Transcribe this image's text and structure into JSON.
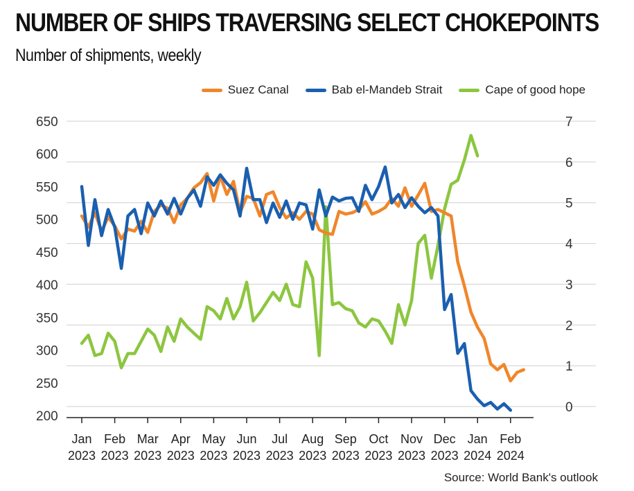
{
  "header": {
    "title": "NUMBER OF SHIPS TRAVERSING SELECT CHOKEPOINTS",
    "subtitle": "Number of shipments, weekly"
  },
  "source": "Source: World Bank's outlook",
  "chart_data": {
    "type": "line",
    "title": "NUMBER OF SHIPS TRAVERSING SELECT CHOKEPOINTS",
    "subtitle": "Number of shipments, weekly",
    "legend_position": "top-right",
    "grid": true,
    "y_left": {
      "ylim": [
        200,
        650
      ],
      "ticks": [
        650,
        600,
        550,
        500,
        450,
        400,
        350,
        300,
        250,
        200
      ]
    },
    "y_right": {
      "ylim": [
        0,
        7
      ],
      "ticks": [
        7,
        6,
        5,
        4,
        3,
        2,
        1,
        0
      ]
    },
    "x_labels": [
      {
        "month": "Jan",
        "year": "2023"
      },
      {
        "month": "Feb",
        "year": "2023"
      },
      {
        "month": "Mar",
        "year": "2023"
      },
      {
        "month": "Apr",
        "year": "2023"
      },
      {
        "month": "May",
        "year": "2023"
      },
      {
        "month": "Jun",
        "year": "2023"
      },
      {
        "month": "Jul",
        "year": "2023"
      },
      {
        "month": "Aug",
        "year": "2023"
      },
      {
        "month": "Sep",
        "year": "2023"
      },
      {
        "month": "Oct",
        "year": "2023"
      },
      {
        "month": "Nov",
        "year": "2023"
      },
      {
        "month": "Dec",
        "year": "2023"
      },
      {
        "month": "Jan",
        "year": "2024"
      },
      {
        "month": "Feb",
        "year": "2024"
      }
    ],
    "x_range": [
      0,
      14
    ],
    "series": [
      {
        "name": "Suez Canal",
        "color": "#f0862a",
        "axis": "left",
        "values": [
          [
            0.0,
            505
          ],
          [
            0.2,
            488
          ],
          [
            0.4,
            510
          ],
          [
            0.6,
            482
          ],
          [
            0.8,
            503
          ],
          [
            1.0,
            490
          ],
          [
            1.2,
            470
          ],
          [
            1.4,
            485
          ],
          [
            1.6,
            482
          ],
          [
            1.8,
            497
          ],
          [
            2.0,
            480
          ],
          [
            2.2,
            512
          ],
          [
            2.4,
            522
          ],
          [
            2.6,
            517
          ],
          [
            2.8,
            495
          ],
          [
            3.0,
            522
          ],
          [
            3.2,
            532
          ],
          [
            3.4,
            548
          ],
          [
            3.6,
            556
          ],
          [
            3.8,
            570
          ],
          [
            4.0,
            528
          ],
          [
            4.2,
            566
          ],
          [
            4.4,
            538
          ],
          [
            4.6,
            558
          ],
          [
            4.8,
            510
          ],
          [
            5.0,
            535
          ],
          [
            5.2,
            532
          ],
          [
            5.4,
            505
          ],
          [
            5.6,
            538
          ],
          [
            5.8,
            542
          ],
          [
            6.0,
            518
          ],
          [
            6.2,
            502
          ],
          [
            6.4,
            510
          ],
          [
            6.6,
            500
          ],
          [
            6.8,
            512
          ],
          [
            7.0,
            508
          ],
          [
            7.2,
            484
          ],
          [
            7.4,
            479
          ],
          [
            7.6,
            477
          ],
          [
            7.8,
            512
          ],
          [
            8.0,
            508
          ],
          [
            8.2,
            510
          ],
          [
            8.4,
            515
          ],
          [
            8.6,
            527
          ],
          [
            8.8,
            508
          ],
          [
            9.0,
            512
          ],
          [
            9.2,
            518
          ],
          [
            9.4,
            532
          ],
          [
            9.6,
            520
          ],
          [
            9.8,
            548
          ],
          [
            10.0,
            520
          ],
          [
            10.2,
            537
          ],
          [
            10.4,
            555
          ],
          [
            10.6,
            512
          ],
          [
            10.8,
            515
          ],
          [
            11.0,
            510
          ],
          [
            11.2,
            505
          ],
          [
            11.4,
            435
          ],
          [
            11.6,
            398
          ],
          [
            11.8,
            358
          ],
          [
            12.0,
            335
          ],
          [
            12.2,
            318
          ],
          [
            12.4,
            279
          ],
          [
            12.6,
            270
          ],
          [
            12.8,
            278
          ],
          [
            13.0,
            253
          ],
          [
            13.2,
            266
          ],
          [
            13.4,
            270
          ]
        ]
      },
      {
        "name": "Bab el-Mandeb Strait",
        "color": "#1a5fb0",
        "axis": "left",
        "values": [
          [
            0.0,
            550
          ],
          [
            0.2,
            460
          ],
          [
            0.4,
            530
          ],
          [
            0.6,
            475
          ],
          [
            0.8,
            515
          ],
          [
            1.0,
            488
          ],
          [
            1.2,
            425
          ],
          [
            1.4,
            505
          ],
          [
            1.6,
            515
          ],
          [
            1.8,
            478
          ],
          [
            2.0,
            525
          ],
          [
            2.2,
            505
          ],
          [
            2.4,
            528
          ],
          [
            2.6,
            508
          ],
          [
            2.8,
            532
          ],
          [
            3.0,
            508
          ],
          [
            3.2,
            532
          ],
          [
            3.4,
            545
          ],
          [
            3.6,
            520
          ],
          [
            3.8,
            565
          ],
          [
            4.0,
            552
          ],
          [
            4.2,
            568
          ],
          [
            4.4,
            555
          ],
          [
            4.6,
            545
          ],
          [
            4.8,
            505
          ],
          [
            5.0,
            578
          ],
          [
            5.2,
            530
          ],
          [
            5.4,
            530
          ],
          [
            5.6,
            495
          ],
          [
            5.8,
            525
          ],
          [
            6.0,
            503
          ],
          [
            6.2,
            528
          ],
          [
            6.4,
            500
          ],
          [
            6.6,
            525
          ],
          [
            6.8,
            522
          ],
          [
            7.0,
            485
          ],
          [
            7.2,
            545
          ],
          [
            7.4,
            505
          ],
          [
            7.6,
            534
          ],
          [
            7.8,
            528
          ],
          [
            8.0,
            532
          ],
          [
            8.2,
            533
          ],
          [
            8.4,
            512
          ],
          [
            8.6,
            552
          ],
          [
            8.8,
            530
          ],
          [
            9.0,
            550
          ],
          [
            9.2,
            580
          ],
          [
            9.4,
            525
          ],
          [
            9.6,
            538
          ],
          [
            9.8,
            518
          ],
          [
            10.0,
            533
          ],
          [
            10.2,
            520
          ],
          [
            10.4,
            510
          ],
          [
            10.6,
            518
          ],
          [
            10.8,
            505
          ],
          [
            11.0,
            362
          ],
          [
            11.2,
            385
          ],
          [
            11.4,
            295
          ],
          [
            11.6,
            310
          ],
          [
            11.8,
            238
          ],
          [
            12.0,
            225
          ],
          [
            12.2,
            215
          ],
          [
            12.4,
            220
          ],
          [
            12.6,
            210
          ],
          [
            12.8,
            218
          ],
          [
            13.0,
            208
          ]
        ]
      },
      {
        "name": "Cape of good hope",
        "color": "#8cc63f",
        "axis": "right",
        "values": [
          [
            0.0,
            1.55
          ],
          [
            0.2,
            1.75
          ],
          [
            0.4,
            1.25
          ],
          [
            0.6,
            1.3
          ],
          [
            0.8,
            1.8
          ],
          [
            1.0,
            1.6
          ],
          [
            1.2,
            0.95
          ],
          [
            1.4,
            1.3
          ],
          [
            1.6,
            1.3
          ],
          [
            1.8,
            1.6
          ],
          [
            2.0,
            1.9
          ],
          [
            2.2,
            1.75
          ],
          [
            2.4,
            1.35
          ],
          [
            2.6,
            1.95
          ],
          [
            2.8,
            1.6
          ],
          [
            3.0,
            2.15
          ],
          [
            3.2,
            1.95
          ],
          [
            3.4,
            1.8
          ],
          [
            3.6,
            1.65
          ],
          [
            3.8,
            2.45
          ],
          [
            4.0,
            2.35
          ],
          [
            4.2,
            2.15
          ],
          [
            4.4,
            2.65
          ],
          [
            4.6,
            2.15
          ],
          [
            4.8,
            2.45
          ],
          [
            5.0,
            3.05
          ],
          [
            5.2,
            2.1
          ],
          [
            5.4,
            2.3
          ],
          [
            5.6,
            2.55
          ],
          [
            5.8,
            2.8
          ],
          [
            6.0,
            2.6
          ],
          [
            6.2,
            3.0
          ],
          [
            6.4,
            2.5
          ],
          [
            6.6,
            2.45
          ],
          [
            6.8,
            3.55
          ],
          [
            7.0,
            3.15
          ],
          [
            7.2,
            1.25
          ],
          [
            7.4,
            4.9
          ],
          [
            7.6,
            2.5
          ],
          [
            7.8,
            2.55
          ],
          [
            8.0,
            2.4
          ],
          [
            8.2,
            2.35
          ],
          [
            8.4,
            2.05
          ],
          [
            8.6,
            1.95
          ],
          [
            8.8,
            2.15
          ],
          [
            9.0,
            2.1
          ],
          [
            9.2,
            1.85
          ],
          [
            9.4,
            1.55
          ],
          [
            9.6,
            2.5
          ],
          [
            9.8,
            2.0
          ],
          [
            10.0,
            2.6
          ],
          [
            10.2,
            4.0
          ],
          [
            10.4,
            4.2
          ],
          [
            10.6,
            3.15
          ],
          [
            10.8,
            3.95
          ],
          [
            11.0,
            4.85
          ],
          [
            11.2,
            5.45
          ],
          [
            11.4,
            5.55
          ],
          [
            11.6,
            6.05
          ],
          [
            11.8,
            6.65
          ],
          [
            12.0,
            6.15
          ]
        ]
      }
    ]
  }
}
